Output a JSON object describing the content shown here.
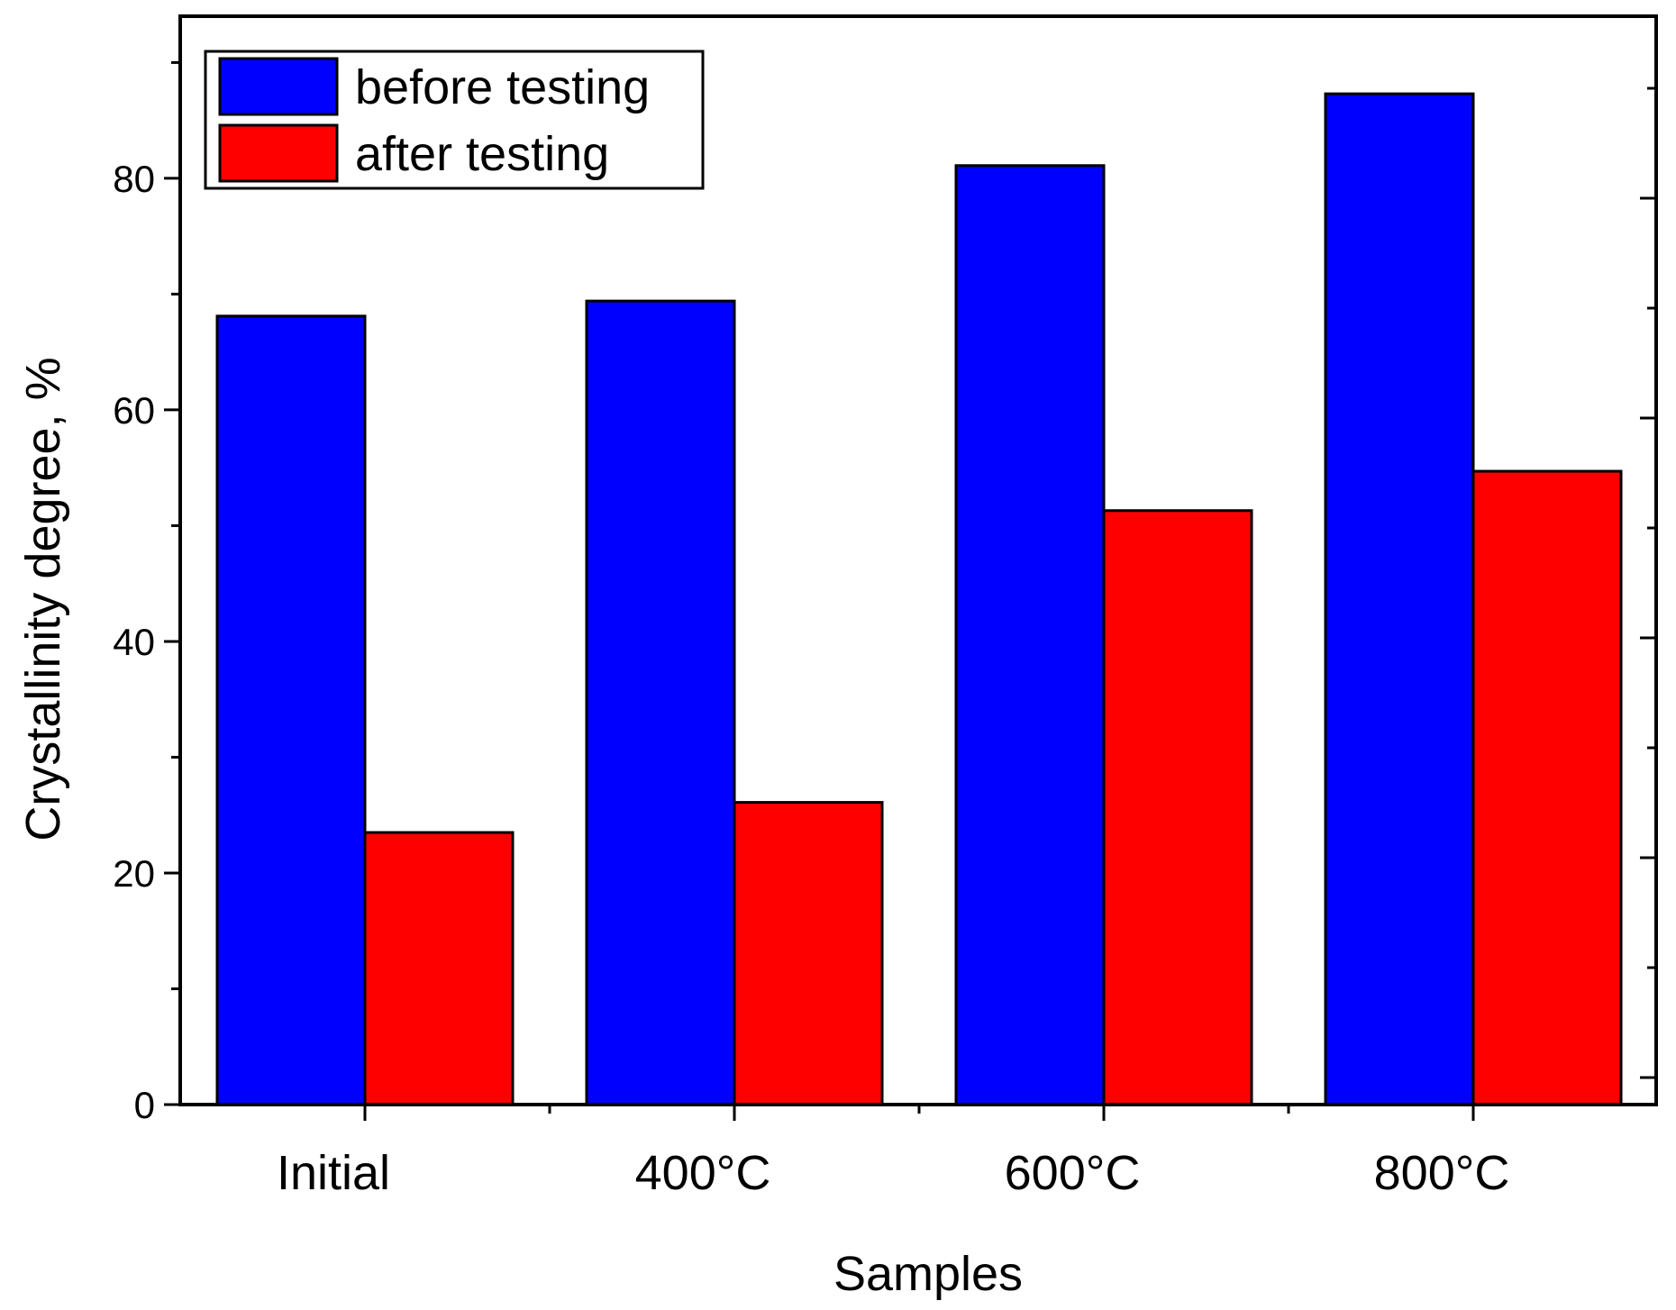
{
  "chart_data": {
    "type": "bar",
    "title": "",
    "xlabel": "Samples",
    "ylabel": "Crystallinity degree, %",
    "categories": [
      "Initial",
      "400°C",
      "600°C",
      "800°C"
    ],
    "series": [
      {
        "name": "before testing",
        "color": "#0000ff",
        "values": [
          68.1,
          69.4,
          81.1,
          87.3
        ]
      },
      {
        "name": "after testing",
        "color": "#ff0000",
        "values": [
          23.5,
          26.1,
          51.3,
          54.7
        ]
      }
    ],
    "ylim": [
      0,
      94
    ],
    "yticks": [
      0,
      20,
      40,
      60,
      80
    ],
    "legend_position": "top-left",
    "grid": false
  }
}
